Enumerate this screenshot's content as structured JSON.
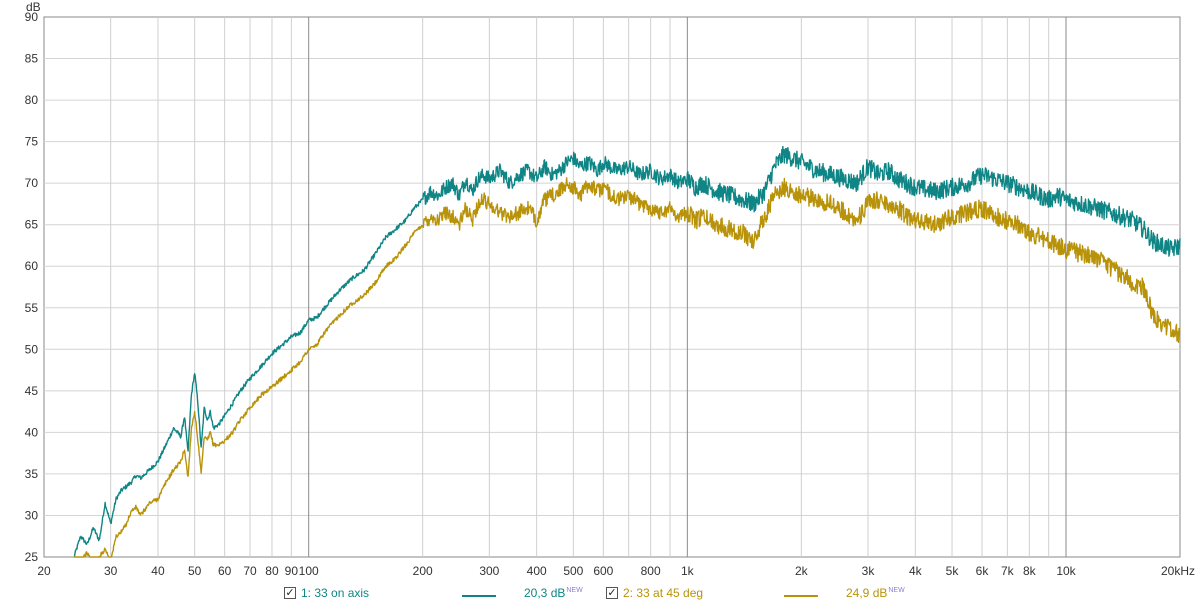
{
  "chart_data": {
    "type": "line",
    "title": "",
    "ylabel": "dB",
    "xunit": "Hz",
    "xscale": "log",
    "xlim": [
      20,
      20000
    ],
    "ylim": [
      25,
      90
    ],
    "grid": true,
    "legend_placement": "bottom",
    "y_ticks": [
      "25",
      "30",
      "35",
      "40",
      "45",
      "50",
      "55",
      "60",
      "65",
      "70",
      "75",
      "80",
      "85",
      "90"
    ],
    "x_ticks": [
      {
        "v": 20,
        "l": "20"
      },
      {
        "v": 30,
        "l": "30"
      },
      {
        "v": 40,
        "l": "40"
      },
      {
        "v": 50,
        "l": "50"
      },
      {
        "v": 60,
        "l": "60"
      },
      {
        "v": 70,
        "l": "70"
      },
      {
        "v": 80,
        "l": "80"
      },
      {
        "v": 90,
        "l": "90"
      },
      {
        "v": 100,
        "l": "100"
      },
      {
        "v": 200,
        "l": "200"
      },
      {
        "v": 300,
        "l": "300"
      },
      {
        "v": 400,
        "l": "400"
      },
      {
        "v": 500,
        "l": "500"
      },
      {
        "v": 600,
        "l": "600"
      },
      {
        "v": 800,
        "l": "800"
      },
      {
        "v": 1000,
        "l": "1k"
      },
      {
        "v": 2000,
        "l": "2k"
      },
      {
        "v": 3000,
        "l": "3k"
      },
      {
        "v": 4000,
        "l": "4k"
      },
      {
        "v": 5000,
        "l": "5k"
      },
      {
        "v": 6000,
        "l": "6k"
      },
      {
        "v": 7000,
        "l": "7k"
      },
      {
        "v": 8000,
        "l": "8k"
      },
      {
        "v": 10000,
        "l": "10k"
      },
      {
        "v": 20000,
        "l": "20kHz"
      }
    ],
    "series": [
      {
        "name": "1: 33 on axis",
        "color": "#0f8585",
        "level": "20,3 dB",
        "x": [
          24,
          25,
          26,
          27,
          28,
          29,
          30,
          31,
          32,
          33,
          34,
          35,
          36,
          38,
          40,
          42,
          44,
          46,
          47,
          48,
          49,
          50,
          51,
          52,
          53,
          54,
          55,
          56,
          58,
          60,
          63,
          66,
          70,
          75,
          80,
          85,
          90,
          95,
          100,
          105,
          110,
          120,
          130,
          140,
          150,
          160,
          170,
          180,
          190,
          200,
          210,
          220,
          230,
          240,
          250,
          260,
          270,
          280,
          290,
          300,
          320,
          340,
          360,
          380,
          400,
          420,
          440,
          460,
          480,
          500,
          520,
          550,
          580,
          600,
          650,
          700,
          750,
          800,
          850,
          900,
          950,
          1000,
          1050,
          1100,
          1200,
          1300,
          1400,
          1500,
          1600,
          1700,
          1800,
          1900,
          2000,
          2200,
          2400,
          2600,
          2800,
          3000,
          3200,
          3400,
          3600,
          3800,
          4000,
          4500,
          5000,
          5500,
          6000,
          6500,
          7000,
          7500,
          8000,
          8500,
          9000,
          9500,
          10000,
          11000,
          12000,
          13000,
          14000,
          15000,
          16000,
          17000,
          18000,
          19000,
          20000
        ],
        "y": [
          25.0,
          27.5,
          26.5,
          28.5,
          27.0,
          31.5,
          29.0,
          32.0,
          33.0,
          33.5,
          34.0,
          34.8,
          34.5,
          35.5,
          36.5,
          38.5,
          40.5,
          39.5,
          42.0,
          37.5,
          44.5,
          47.2,
          43.5,
          38.0,
          43.0,
          41.5,
          42.5,
          40.5,
          41.0,
          42.0,
          43.5,
          45.0,
          46.5,
          48.0,
          49.5,
          50.5,
          51.5,
          52.0,
          53.5,
          53.8,
          55.0,
          57.0,
          58.5,
          59.5,
          61.5,
          63.5,
          64.5,
          65.5,
          67.0,
          68.0,
          69.0,
          68.5,
          69.5,
          70.0,
          68.5,
          70.5,
          69.0,
          70.5,
          71.0,
          70.5,
          71.5,
          70.0,
          71.0,
          71.5,
          70.5,
          72.0,
          71.0,
          71.5,
          72.5,
          73.0,
          72.0,
          72.5,
          71.5,
          72.5,
          71.5,
          72.0,
          71.0,
          71.5,
          70.5,
          71.0,
          70.0,
          70.5,
          69.5,
          70.0,
          69.0,
          68.5,
          68.0,
          67.5,
          69.0,
          72.0,
          73.5,
          73.0,
          72.5,
          71.5,
          71.0,
          70.5,
          70.0,
          72.0,
          71.0,
          71.5,
          70.5,
          70.0,
          69.5,
          69.0,
          69.5,
          70.0,
          71.0,
          70.5,
          70.0,
          69.5,
          69.0,
          68.5,
          68.0,
          68.5,
          68.0,
          67.5,
          67.0,
          66.5,
          66.0,
          65.5,
          64.5,
          63.0,
          62.5,
          62.0,
          62.5
        ]
      },
      {
        "name": "2: 33 at 45 deg",
        "color": "#b8930a",
        "level": "24,9 dB",
        "x": [
          24,
          25,
          26,
          27,
          28,
          29,
          30,
          31,
          32,
          33,
          34,
          35,
          36,
          38,
          40,
          42,
          44,
          46,
          47,
          48,
          49,
          50,
          51,
          52,
          53,
          54,
          55,
          56,
          58,
          60,
          63,
          66,
          70,
          75,
          80,
          85,
          90,
          95,
          100,
          105,
          110,
          120,
          130,
          140,
          150,
          160,
          170,
          180,
          190,
          200,
          210,
          220,
          230,
          240,
          250,
          260,
          270,
          280,
          290,
          300,
          320,
          340,
          360,
          380,
          400,
          420,
          440,
          460,
          480,
          500,
          520,
          550,
          580,
          600,
          650,
          700,
          750,
          800,
          850,
          900,
          950,
          1000,
          1050,
          1100,
          1200,
          1300,
          1400,
          1500,
          1600,
          1700,
          1800,
          1900,
          2000,
          2200,
          2400,
          2600,
          2800,
          3000,
          3200,
          3400,
          3600,
          3800,
          4000,
          4500,
          5000,
          5500,
          6000,
          6500,
          7000,
          7500,
          8000,
          8500,
          9000,
          9500,
          10000,
          11000,
          12000,
          13000,
          14000,
          15000,
          16000,
          17000,
          18000,
          19000,
          20000
        ],
        "y": [
          24.0,
          24.5,
          25.5,
          24.0,
          25.0,
          26.0,
          24.5,
          27.5,
          28.0,
          29.0,
          30.5,
          31.0,
          30.0,
          31.5,
          32.0,
          34.0,
          35.5,
          36.5,
          38.0,
          34.5,
          40.5,
          42.5,
          39.0,
          35.0,
          39.5,
          39.0,
          40.0,
          38.5,
          38.5,
          39.0,
          40.0,
          41.5,
          43.0,
          44.5,
          45.5,
          46.5,
          47.5,
          48.5,
          50.0,
          50.5,
          52.0,
          54.0,
          55.5,
          56.5,
          58.0,
          60.0,
          61.0,
          62.5,
          64.0,
          65.0,
          66.0,
          65.5,
          66.5,
          66.0,
          65.0,
          67.0,
          65.5,
          67.5,
          68.0,
          67.5,
          66.5,
          66.0,
          66.5,
          67.0,
          65.5,
          68.0,
          68.5,
          69.0,
          70.0,
          69.5,
          68.5,
          70.0,
          69.0,
          69.5,
          68.0,
          68.5,
          67.5,
          67.0,
          66.5,
          67.0,
          66.0,
          66.5,
          65.5,
          66.0,
          65.0,
          64.5,
          64.0,
          63.0,
          66.0,
          68.5,
          69.5,
          69.0,
          68.5,
          68.0,
          67.5,
          66.5,
          65.5,
          67.5,
          68.0,
          67.5,
          67.0,
          66.0,
          65.5,
          65.0,
          66.0,
          66.5,
          67.0,
          66.0,
          65.5,
          65.0,
          64.0,
          63.5,
          63.0,
          62.5,
          62.0,
          61.5,
          61.0,
          60.0,
          59.0,
          58.0,
          57.5,
          54.0,
          53.0,
          52.5,
          51.5
        ]
      }
    ]
  },
  "legend": {
    "items": [
      {
        "check": "✓",
        "label": "1: 33 on axis",
        "value": "20,3 dB",
        "badge": "NEW",
        "color": "#0f8585"
      },
      {
        "check": "✓",
        "label": "2: 33 at 45 deg",
        "value": "24,9 dB",
        "badge": "NEW",
        "color": "#b8930a"
      }
    ]
  }
}
